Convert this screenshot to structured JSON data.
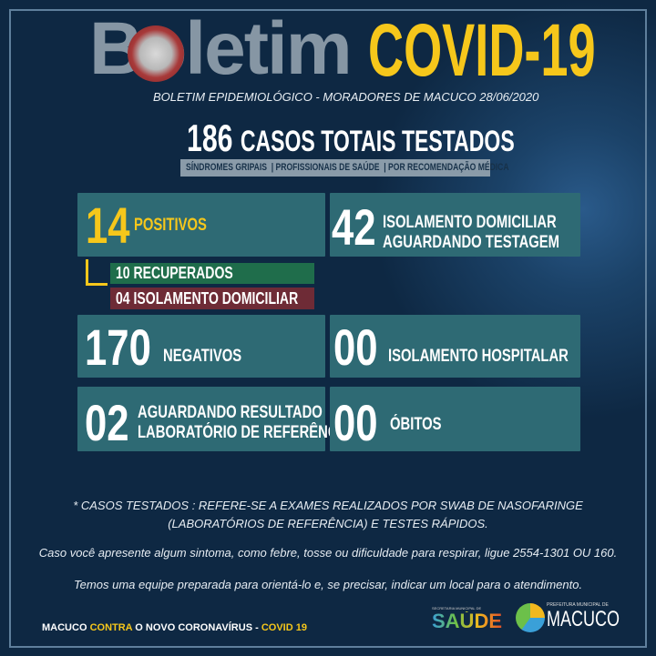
{
  "header": {
    "title_word": "Boletim",
    "title_highlight": "COVID-19",
    "subtitle": "BOLETIM EPIDEMIOLÓGICO - MORADORES DE MACUCO 28/06/2020"
  },
  "total": {
    "number": "186",
    "label": "CASOS TOTAIS TESTADOS",
    "categories": [
      "SÍNDROMES GRIPAIS",
      "PROFISSIONAIS DE SAÚDE",
      "POR RECOMENDAÇÃO MÉDICA"
    ]
  },
  "stats": {
    "positivos": {
      "number": "14",
      "label": "POSITIVOS"
    },
    "aguardando_testagem": {
      "number": "42",
      "label1": "ISOLAMENTO DOMICILIAR",
      "label2": "AGUARDANDO TESTAGEM"
    },
    "recuperados": "10 RECUPERADOS",
    "isolamento_domiciliar": "04 ISOLAMENTO DOMICILIAR",
    "negativos": {
      "number": "170",
      "label": "NEGATIVOS"
    },
    "hospitalar": {
      "number": "00",
      "label": "ISOLAMENTO HOSPITALAR"
    },
    "aguardando_resultado": {
      "number": "02",
      "label1": "AGUARDANDO RESULTADO",
      "label2": "LABORATÓRIO DE REFERÊNCIA"
    },
    "obitos": {
      "number": "00",
      "label": "ÓBITOS"
    }
  },
  "notes": {
    "line1": "* CASOS TESTADOS : REFERE-SE A EXAMES REALIZADOS POR SWAB DE NASOFARINGE",
    "line2": "(LABORATÓRIOS DE REFERÊNCIA)  E  TESTES RÁPIDOS.",
    "line3": "Caso você apresente algum sintoma, como febre, tosse ou dificuldade para respirar, ligue 2554-1301 OU 160.",
    "line4": "Temos uma equipe preparada para orientá-lo e, se precisar, indicar um local para o atendimento."
  },
  "footer": {
    "part1": "MACUCO ",
    "part2": "CONTRA",
    "part3": " O NOVO CORONAVÍRUS - ",
    "part4": "COVID 19",
    "logo_saude": "SAÚDE",
    "logo_saude_top": "SECRETARIA MUNICIPAL DE",
    "logo_macuco": "MACUCO",
    "logo_macuco_top": "PREFEITURA MUNICIPAL DE"
  },
  "colors": {
    "background": "#0e2843",
    "box": "#2e6a74",
    "yellow": "#f6c71b",
    "recuperados": "#1f6d4b",
    "isolamento": "#6e2b36"
  }
}
